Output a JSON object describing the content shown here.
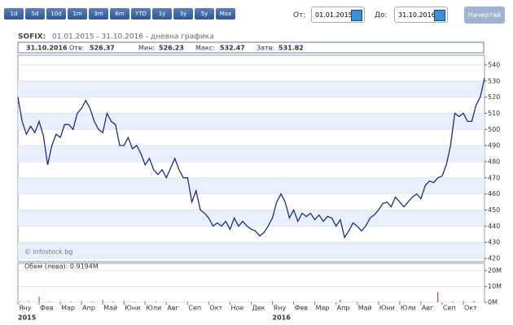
{
  "toolbar": {
    "buttons": [
      "1d",
      "5d",
      "10d",
      "1m",
      "3m",
      "6m",
      "YTD",
      "1y",
      "3y",
      "5y",
      "Max"
    ],
    "from_label": "От:",
    "from_value": "01.01.2015",
    "to_label": "До:",
    "to_value": "31.10.2016",
    "submit": "Начертай"
  },
  "header": {
    "symbol": "SOFIX:",
    "subtitle": "01.01.2015 - 31.10.2016 - дневна графика",
    "date": "31.10.2016",
    "open_label": "Отв:",
    "open": "526.37",
    "low_label": "Мин:",
    "low": "526.23",
    "high_label": "Макс:",
    "high": "532.47",
    "close_label": "Затв:",
    "close": "531.82"
  },
  "chart_data": [
    {
      "type": "line",
      "watermark": "© infostock.bg",
      "xlim": [
        0,
        22
      ],
      "ylim": [
        418,
        546
      ],
      "yticks": [
        420,
        430,
        440,
        450,
        460,
        470,
        480,
        490,
        500,
        510,
        520,
        530,
        540
      ],
      "bands": true,
      "xticks": [
        {
          "value": 0,
          "label": "Яну"
        },
        {
          "value": 1,
          "label": "Фев"
        },
        {
          "value": 2,
          "label": "Мар"
        },
        {
          "value": 3,
          "label": "Апр"
        },
        {
          "value": 4,
          "label": "Май"
        },
        {
          "value": 5,
          "label": "Юни"
        },
        {
          "value": 6,
          "label": "Юли"
        },
        {
          "value": 7,
          "label": "Авг"
        },
        {
          "value": 8,
          "label": "Сеп"
        },
        {
          "value": 9,
          "label": "Окт"
        },
        {
          "value": 10,
          "label": "Ное"
        },
        {
          "value": 11,
          "label": "Дек"
        },
        {
          "value": 12,
          "label": "Яну"
        },
        {
          "value": 13,
          "label": "Фев"
        },
        {
          "value": 14,
          "label": "Мар"
        },
        {
          "value": 15,
          "label": "Апр"
        },
        {
          "value": 16,
          "label": "Май"
        },
        {
          "value": 17,
          "label": "Юни"
        },
        {
          "value": 18,
          "label": "Юли"
        },
        {
          "value": 19,
          "label": "Авг"
        },
        {
          "value": 20,
          "label": "Сеп"
        },
        {
          "value": 21,
          "label": "Окт"
        }
      ],
      "year_ticks": [
        {
          "value": 0,
          "label": "2015"
        },
        {
          "value": 12,
          "label": "2016"
        }
      ],
      "series": [
        {
          "color": "#1f2f7a",
          "x": [
            0,
            0.2,
            0.4,
            0.6,
            0.8,
            1,
            1.2,
            1.4,
            1.6,
            1.8,
            2,
            2.2,
            2.4,
            2.6,
            2.8,
            3,
            3.2,
            3.4,
            3.6,
            3.8,
            4,
            4.2,
            4.4,
            4.6,
            4.8,
            5,
            5.2,
            5.4,
            5.6,
            5.8,
            6,
            6.2,
            6.4,
            6.6,
            6.8,
            7,
            7.2,
            7.4,
            7.6,
            7.8,
            8,
            8.2,
            8.4,
            8.6,
            8.8,
            9,
            9.2,
            9.4,
            9.6,
            9.8,
            10,
            10.2,
            10.4,
            10.6,
            10.8,
            11,
            11.2,
            11.4,
            11.6,
            11.8,
            12,
            12.2,
            12.4,
            12.6,
            12.8,
            13,
            13.2,
            13.4,
            13.6,
            13.8,
            14,
            14.2,
            14.4,
            14.6,
            14.8,
            15,
            15.2,
            15.4,
            15.6,
            15.8,
            16,
            16.2,
            16.4,
            16.6,
            16.8,
            17,
            17.2,
            17.4,
            17.6,
            17.8,
            18,
            18.2,
            18.4,
            18.6,
            18.8,
            19,
            19.2,
            19.4,
            19.6,
            19.8,
            20,
            20.2,
            20.4,
            20.6,
            20.8,
            21,
            21.2,
            21.4,
            21.6,
            21.8,
            22
          ],
          "values": [
            520,
            505,
            497,
            502,
            498,
            505,
            496,
            478,
            490,
            497,
            495,
            503,
            503,
            500,
            510,
            513,
            518,
            513,
            505,
            500,
            498,
            510,
            505,
            503,
            490,
            490,
            495,
            488,
            490,
            485,
            478,
            482,
            475,
            472,
            475,
            470,
            476,
            482,
            475,
            470,
            470,
            455,
            462,
            450,
            448,
            445,
            440,
            442,
            440,
            443,
            438,
            445,
            440,
            443,
            440,
            438,
            437,
            434,
            436,
            440,
            445,
            455,
            460,
            455,
            445,
            450,
            443,
            448,
            446,
            448,
            444,
            447,
            443,
            446,
            445,
            440,
            444,
            433,
            437,
            442,
            440,
            437,
            440,
            445,
            447,
            450,
            454,
            455,
            452,
            458,
            455,
            452,
            455,
            458,
            460,
            457,
            465,
            468,
            467,
            470,
            471,
            478,
            490,
            510,
            508,
            510,
            505,
            505,
            515,
            520,
            531.82
          ]
        }
      ]
    },
    {
      "type": "bar",
      "label": "Обем (лева): 0.9194M",
      "xlim": [
        0,
        22
      ],
      "ylim": [
        0,
        24.6
      ],
      "yticks": [
        {
          "value": 0,
          "label": "0M"
        },
        {
          "value": 10,
          "label": "10M"
        },
        {
          "value": 20,
          "label": "20M"
        }
      ],
      "series": [
        {
          "x": [
            0.1,
            0.5,
            1,
            1.5,
            2,
            2.5,
            3,
            3.5,
            4,
            4.5,
            5,
            5.5,
            6,
            6.5,
            7,
            8,
            9,
            10,
            11,
            12,
            13,
            14,
            15.2,
            16,
            17,
            18,
            19,
            19.8,
            20.5,
            21,
            21.5
          ],
          "values": [
            0.5,
            0.8,
            3.5,
            0.6,
            0.4,
            0.5,
            0.8,
            0.5,
            1.2,
            0.6,
            0.7,
            0.4,
            0.5,
            0.6,
            0.3,
            0.5,
            0.4,
            0.3,
            0.4,
            0.6,
            0.4,
            0.5,
            1.5,
            0.3,
            0.4,
            0.6,
            0.5,
            6.5,
            0.5,
            0.7,
            0.9
          ],
          "colors": [
            "#d06060",
            "#d06060",
            "#3a9a3a",
            "#d06060",
            "#3a9a3a",
            "#d06060",
            "#d06060",
            "#3a9a3a",
            "#d06060",
            "#d06060",
            "#3a9a3a",
            "#d06060",
            "#d06060",
            "#3a9a3a",
            "#d06060",
            "#d06060",
            "#3a9a3a",
            "#d06060",
            "#d06060",
            "#3a9a3a",
            "#d06060",
            "#d06060",
            "#d04040",
            "#d06060",
            "#3a9a3a",
            "#d06060",
            "#d06060",
            "#d04040",
            "#d06060",
            "#3a9a3a",
            "#d06060"
          ]
        }
      ]
    }
  ]
}
